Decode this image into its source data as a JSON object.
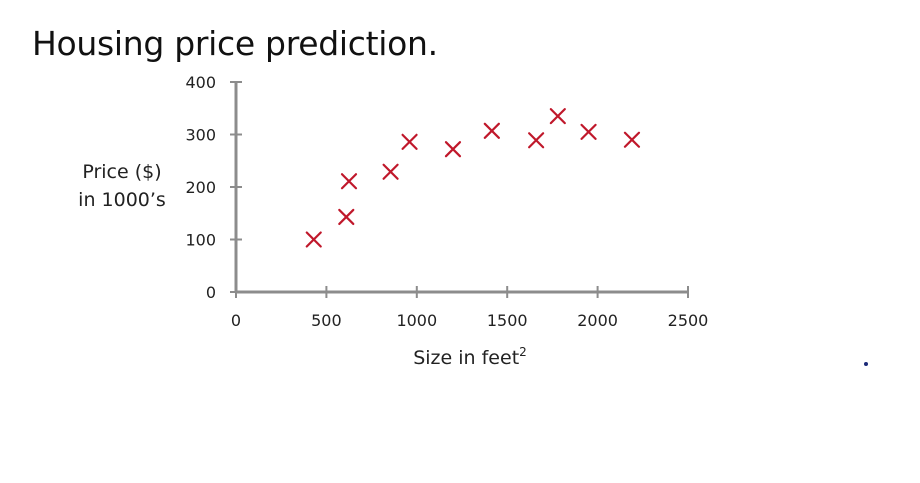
{
  "slide": {
    "title": "Housing price prediction."
  },
  "chart_data": {
    "type": "scatter",
    "title": "",
    "ylabel": [
      "Price ($)",
      "in 1000’s"
    ],
    "xlabel": "Size in feet",
    "xlabel_superscript": "2",
    "xlim": [
      0,
      2500
    ],
    "ylim": [
      0,
      400
    ],
    "xticks": [
      0,
      500,
      1000,
      1500,
      2000,
      2500
    ],
    "yticks": [
      0,
      100,
      200,
      300,
      400
    ],
    "grid": false,
    "marker": "x",
    "marker_color": "#c0182b",
    "axis_color": "#8c8c8c",
    "points": [
      {
        "x": 430,
        "y": 100
      },
      {
        "x": 610,
        "y": 143
      },
      {
        "x": 625,
        "y": 211
      },
      {
        "x": 855,
        "y": 229
      },
      {
        "x": 960,
        "y": 286
      },
      {
        "x": 1200,
        "y": 272
      },
      {
        "x": 1415,
        "y": 307
      },
      {
        "x": 1660,
        "y": 289
      },
      {
        "x": 1780,
        "y": 335
      },
      {
        "x": 1950,
        "y": 305
      },
      {
        "x": 2190,
        "y": 290
      }
    ]
  }
}
